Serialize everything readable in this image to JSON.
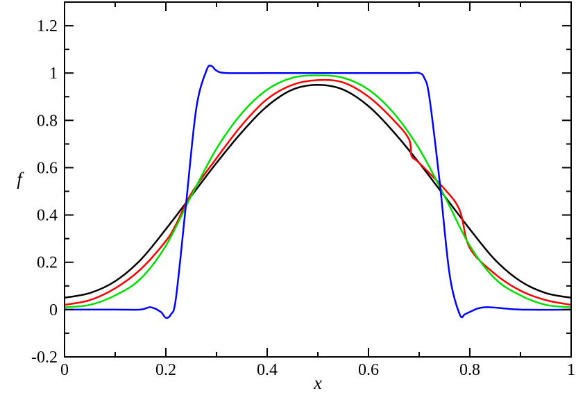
{
  "chart_data": {
    "type": "line",
    "title": "",
    "xlabel": "x",
    "ylabel": "f",
    "xlim": [
      0,
      1
    ],
    "ylim": [
      -0.2,
      1.3
    ],
    "x_ticks": [
      0,
      0.2,
      0.4,
      0.6,
      0.8,
      1
    ],
    "x_tick_labels": [
      "0",
      "0.2",
      "0.4",
      "0.6",
      "0.8",
      "1"
    ],
    "y_ticks": [
      -0.2,
      0,
      0.2,
      0.4,
      0.6,
      0.8,
      1,
      1.2
    ],
    "y_tick_labels": [
      "-0.2",
      "0",
      "0.2",
      "0.4",
      "0.6",
      "0.8",
      "1",
      "1.2"
    ],
    "grid": false,
    "legend": "none",
    "series": [
      {
        "color": "#000000",
        "x": [
          0,
          0.05,
          0.1,
          0.15,
          0.2,
          0.25,
          0.3,
          0.35,
          0.4,
          0.45,
          0.5,
          0.55,
          0.6,
          0.65,
          0.7,
          0.75,
          0.8,
          0.85,
          0.9,
          0.95,
          1
        ],
        "y": [
          0.05,
          0.07,
          0.12,
          0.21,
          0.34,
          0.48,
          0.62,
          0.75,
          0.86,
          0.93,
          0.95,
          0.93,
          0.86,
          0.75,
          0.62,
          0.48,
          0.34,
          0.21,
          0.12,
          0.07,
          0.05
        ]
      },
      {
        "color": "#ff0000",
        "x": [
          0,
          0.05,
          0.1,
          0.15,
          0.2,
          0.22,
          0.25,
          0.3,
          0.35,
          0.4,
          0.45,
          0.5,
          0.55,
          0.6,
          0.65,
          0.68,
          0.685,
          0.7,
          0.75,
          0.78,
          0.8,
          0.85,
          0.9,
          0.95,
          1
        ],
        "y": [
          0.02,
          0.04,
          0.09,
          0.17,
          0.29,
          0.36,
          0.49,
          0.64,
          0.78,
          0.89,
          0.95,
          0.97,
          0.96,
          0.9,
          0.8,
          0.72,
          0.65,
          0.62,
          0.51,
          0.42,
          0.26,
          0.15,
          0.08,
          0.04,
          0.02
        ]
      },
      {
        "color": "#00e000",
        "x": [
          0,
          0.05,
          0.1,
          0.15,
          0.2,
          0.25,
          0.3,
          0.35,
          0.4,
          0.45,
          0.5,
          0.55,
          0.6,
          0.65,
          0.7,
          0.75,
          0.8,
          0.85,
          0.9,
          0.95,
          1
        ],
        "y": [
          0.01,
          0.02,
          0.06,
          0.13,
          0.27,
          0.48,
          0.68,
          0.83,
          0.93,
          0.98,
          0.99,
          0.98,
          0.93,
          0.83,
          0.68,
          0.48,
          0.27,
          0.13,
          0.06,
          0.02,
          0.01
        ]
      },
      {
        "color": "#0000ff",
        "x": [
          0,
          0.1,
          0.15,
          0.17,
          0.19,
          0.2,
          0.21,
          0.22,
          0.24,
          0.26,
          0.28,
          0.29,
          0.3,
          0.32,
          0.4,
          0.5,
          0.6,
          0.68,
          0.7,
          0.71,
          0.72,
          0.74,
          0.76,
          0.78,
          0.79,
          0.8,
          0.83,
          0.9,
          1
        ],
        "y": [
          0.0,
          0.0,
          0.0,
          0.01,
          -0.01,
          -0.035,
          -0.02,
          0.05,
          0.45,
          0.85,
          1.01,
          1.03,
          1.01,
          1.0,
          1.0,
          1.0,
          1.0,
          1.0,
          1.0,
          0.98,
          0.9,
          0.55,
          0.15,
          -0.02,
          -0.02,
          -0.01,
          0.01,
          0.0,
          0.0
        ]
      }
    ]
  }
}
